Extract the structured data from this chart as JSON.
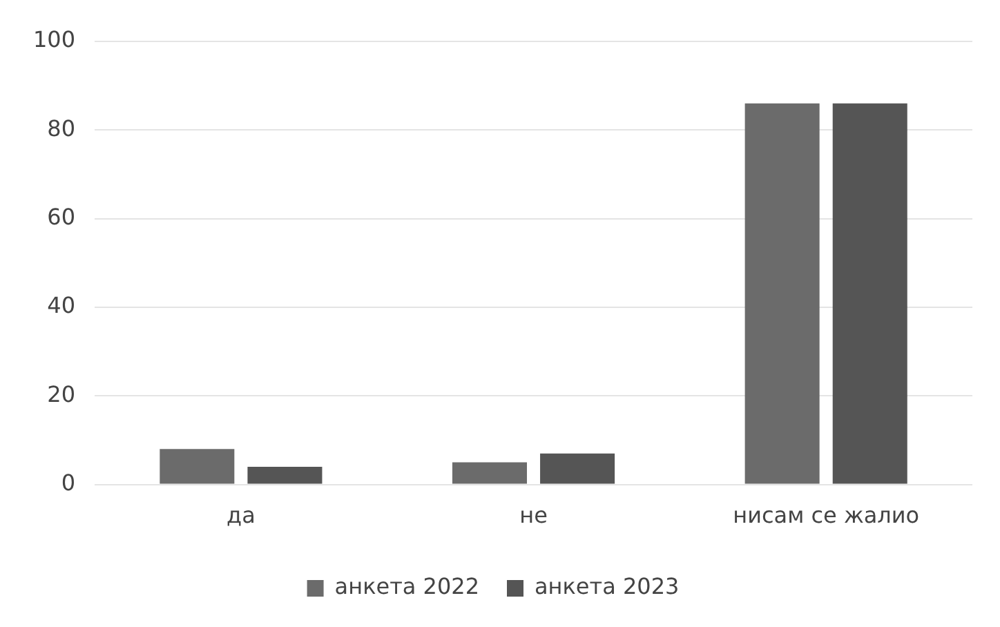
{
  "chart_data": {
    "type": "bar",
    "categories": [
      "да",
      "не",
      "нисам се жалио"
    ],
    "series": [
      {
        "name": "анкета 2022",
        "color": "#6b6b6b",
        "values": [
          8,
          5,
          86
        ]
      },
      {
        "name": "анкета 2023",
        "color": "#555555",
        "values": [
          4,
          7,
          86
        ]
      }
    ],
    "ylim": [
      0,
      100
    ],
    "yticks": [
      0,
      20,
      40,
      60,
      80,
      100
    ],
    "grid": "y",
    "legend": "bottom"
  }
}
